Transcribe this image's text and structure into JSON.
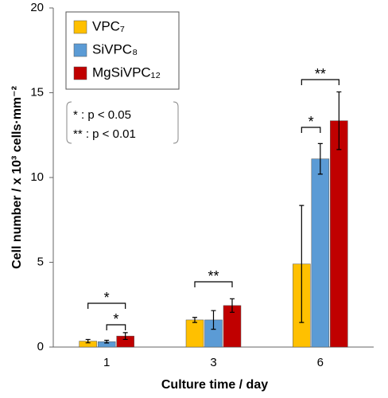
{
  "chart_data": {
    "type": "bar",
    "categories": [
      "1",
      "3",
      "6"
    ],
    "series": [
      {
        "name": "VPC₇",
        "color": "#ffc000",
        "values": [
          0.35,
          1.6,
          4.9
        ],
        "errors": [
          0.1,
          0.15,
          3.45
        ]
      },
      {
        "name": "SiVPC₈",
        "color": "#5b9bd5",
        "values": [
          0.32,
          1.6,
          11.1
        ],
        "errors": [
          0.08,
          0.55,
          0.9
        ]
      },
      {
        "name": "MgSiVPC₁₂",
        "color": "#c00000",
        "values": [
          0.65,
          2.45,
          13.35
        ],
        "errors": [
          0.2,
          0.4,
          1.7
        ]
      }
    ],
    "ylim": [
      0,
      20
    ],
    "yticks": [
      0,
      5,
      10,
      15,
      20
    ],
    "xlabel": "Culture time / day",
    "ylabel": "Cell number  / x 10³ cells·mm⁻²",
    "significance_labels": [
      "*",
      "*",
      "**",
      "*",
      "**"
    ],
    "legend_notes": [
      "*   : p < 0.05",
      "** : p < 0.01"
    ]
  }
}
